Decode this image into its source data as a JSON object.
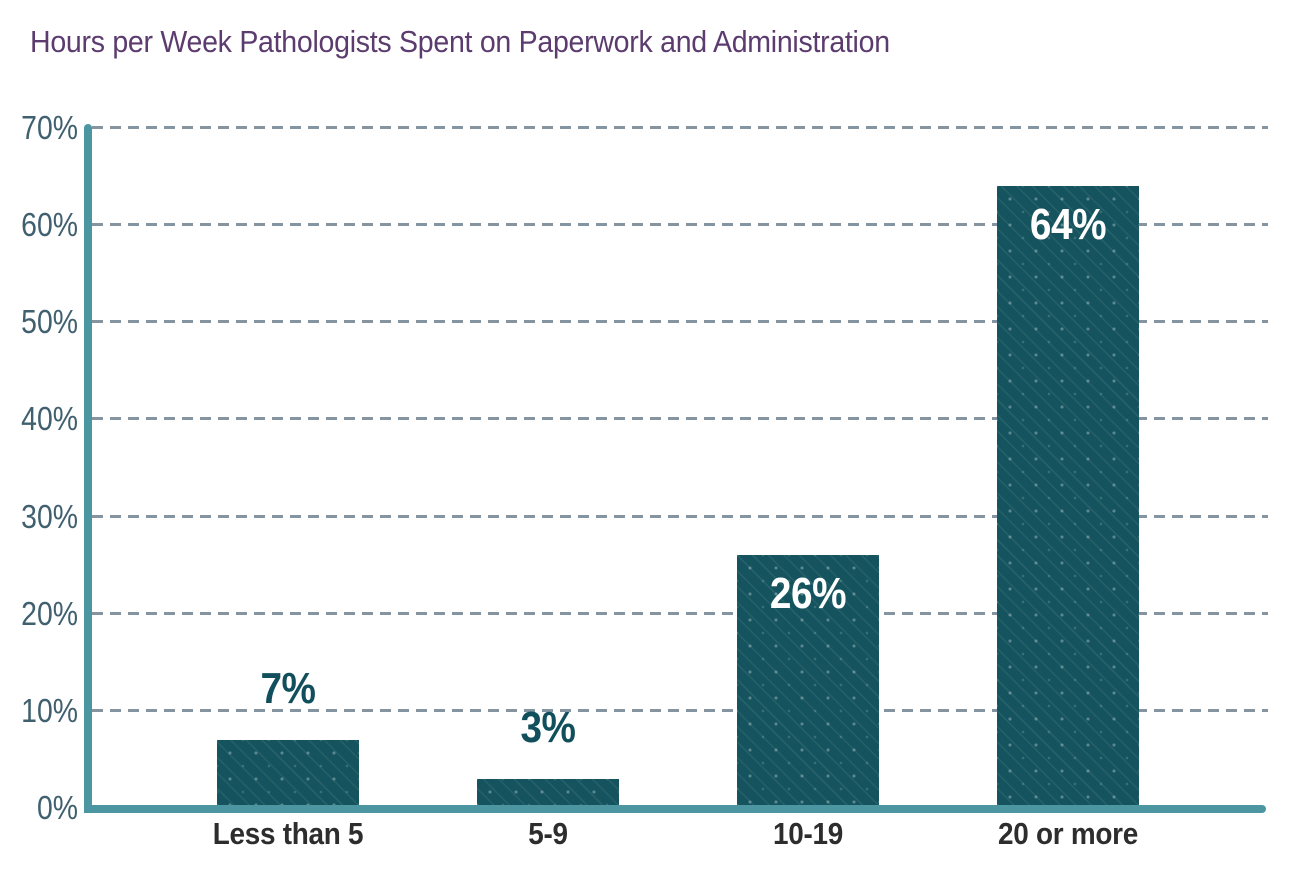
{
  "page": {
    "background": "#FFFFFF"
  },
  "chart_data": {
    "type": "bar",
    "title": "Hours per Week Pathologists Spent on Paperwork and Administration",
    "categories": [
      "Less than 5",
      "5-9",
      "10-19",
      "20 or more"
    ],
    "values": [
      7,
      3,
      26,
      64
    ],
    "value_labels": [
      "7%",
      "3%",
      "26%",
      "64%"
    ],
    "value_label_placement": [
      "above",
      "above",
      "inside",
      "inside"
    ],
    "xlabel": "",
    "ylabel": "",
    "ylim": [
      0,
      70
    ],
    "y_tick_step": 10,
    "y_tick_labels": [
      "0%",
      "10%",
      "20%",
      "30%",
      "40%",
      "50%",
      "60%",
      "70%"
    ],
    "grid": {
      "horizontal": true,
      "style": "dashed",
      "vertical": false
    },
    "legend": "none",
    "colors": {
      "title": "#5C3C6E",
      "bar_fill": "#15545E",
      "bar_texture_dots": "rgba(255,255,255,0.30)",
      "axis_line": "#4C96A2",
      "gridline": "#8494A1",
      "y_tick_label": "#40606F",
      "category_label": "#2D2D2D",
      "value_label_inside": "#FFFFFF",
      "value_label_outside": "#124F5D"
    }
  }
}
